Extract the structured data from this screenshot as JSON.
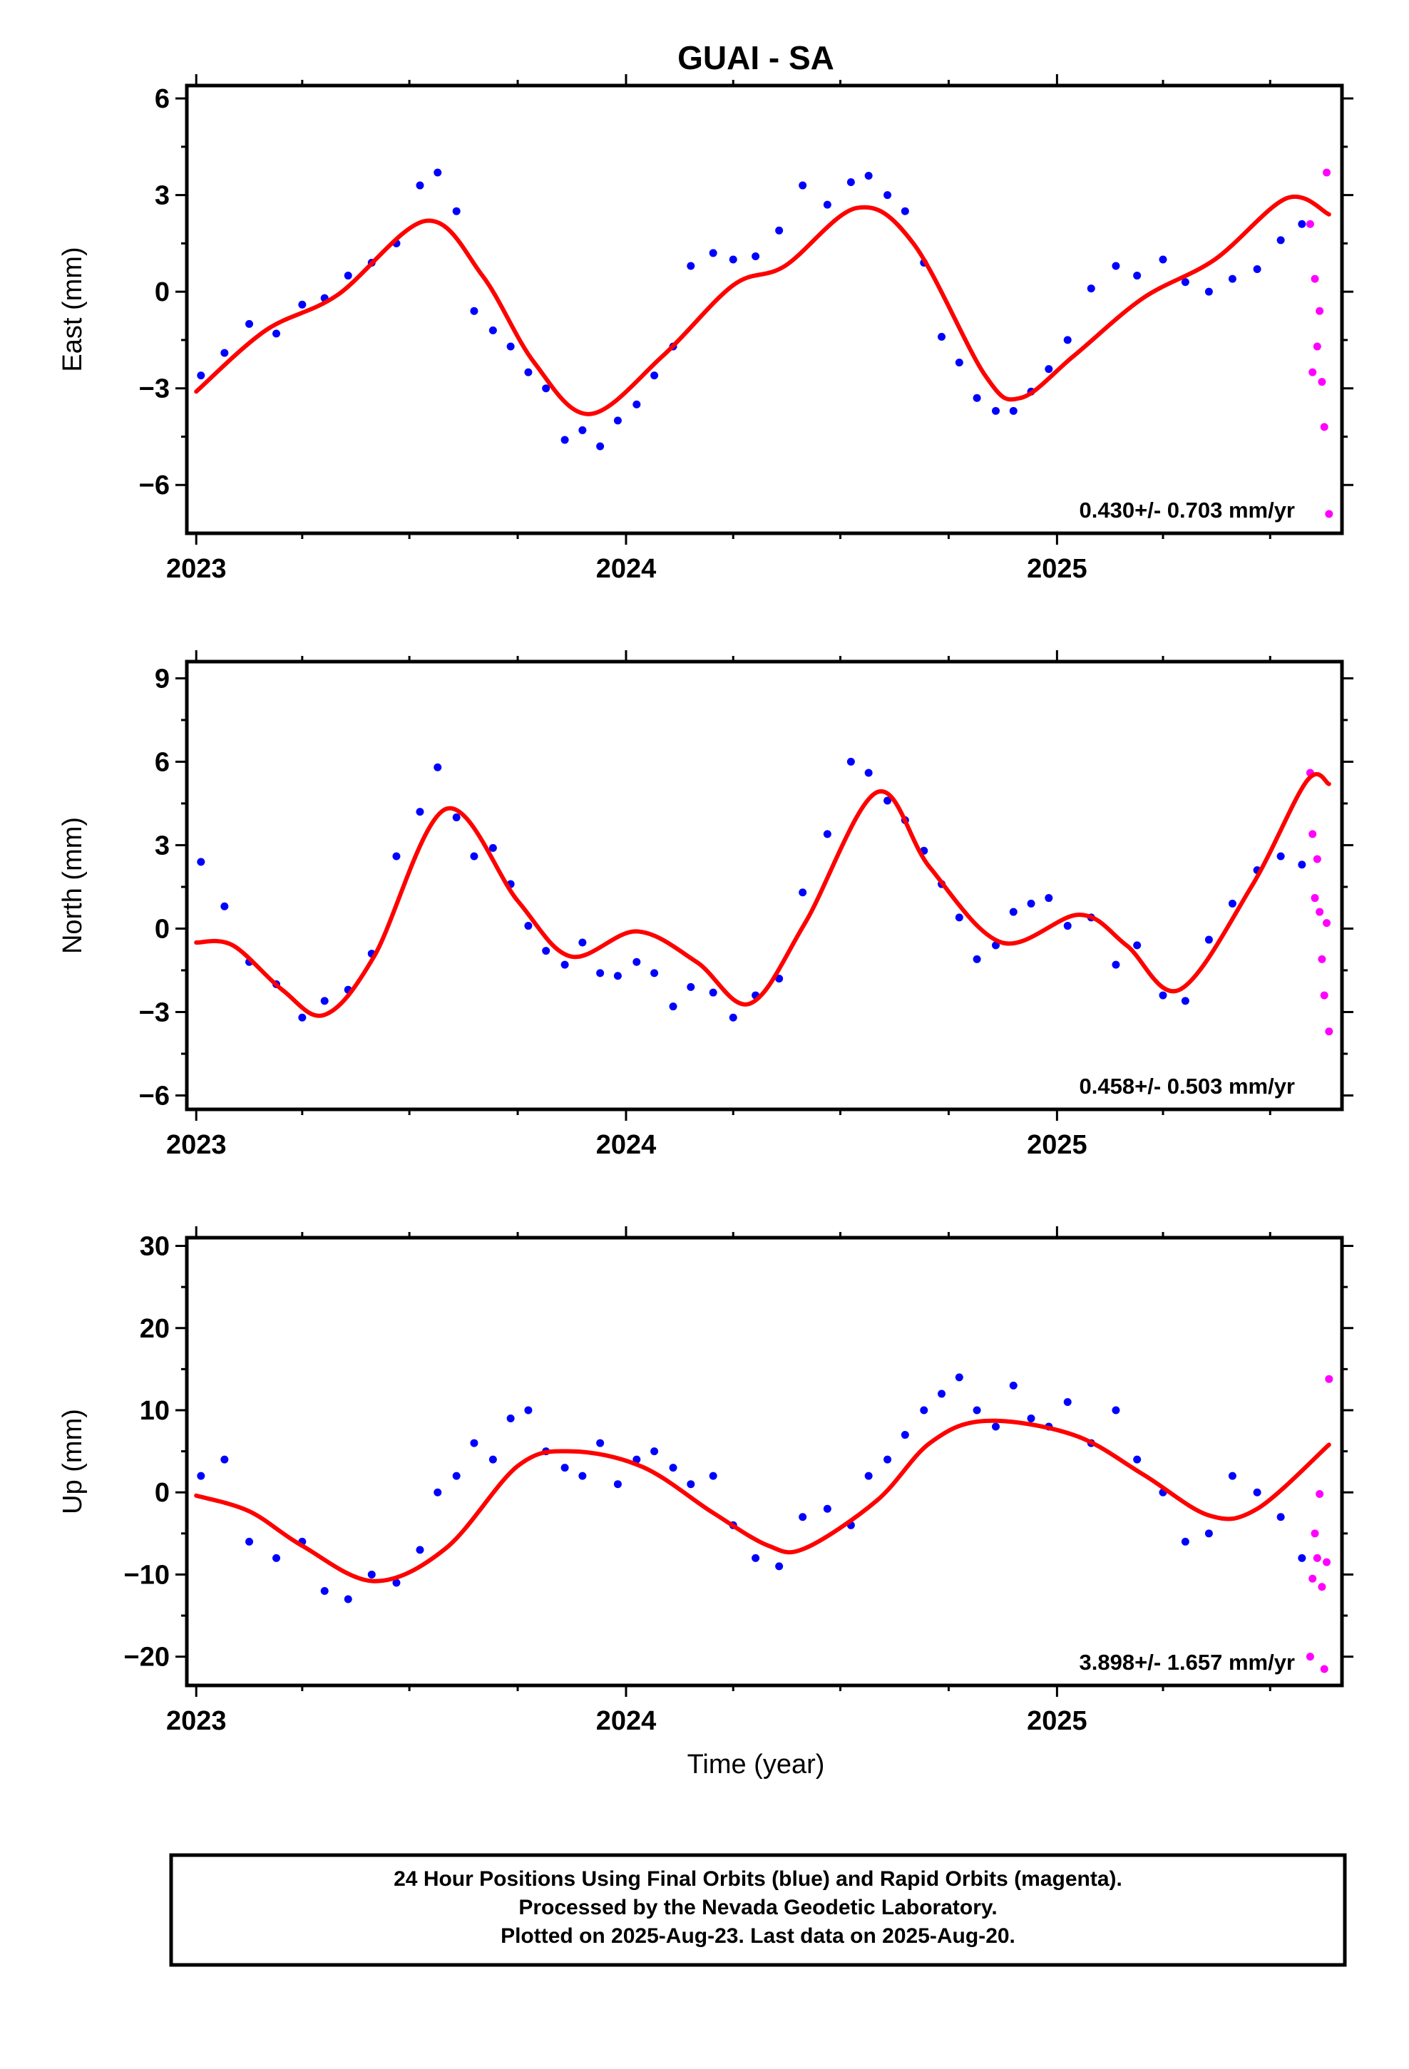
{
  "figure": {
    "title": "GUAI - SA",
    "xlabel": "Time (year)",
    "footer": [
      "24 Hour Positions Using Final Orbits (blue) and Rapid Orbits (magenta).",
      "Processed by the Nevada Geodetic Laboratory.",
      "Plotted on 2025-Aug-23. Last data on 2025-Aug-20."
    ]
  },
  "colors": {
    "final_orbits": "#0000ff",
    "rapid_orbits": "#ff00ff",
    "fit": "#ff0000",
    "frame": "#000000"
  },
  "chart_data": [
    {
      "type": "scatter",
      "ylabel": "East (mm)",
      "xlim": [
        "2022-12-24",
        "2025-08-31"
      ],
      "ylim": [
        -7.5,
        6.4
      ],
      "xticks": [
        "2023",
        "2024",
        "2025"
      ],
      "yticks": [
        -6,
        -3,
        0,
        3,
        6
      ],
      "rate_text": "0.430+/- 0.703 mm/yr",
      "fit_curve": {
        "x": [
          "2023-01-01",
          "2023-03-01",
          "2023-05-01",
          "2023-07-15",
          "2023-09-01",
          "2023-10-15",
          "2023-12-01",
          "2024-02-01",
          "2024-04-01",
          "2024-05-15",
          "2024-07-15",
          "2024-09-01",
          "2024-11-01",
          "2024-12-01",
          "2025-01-15",
          "2025-03-15",
          "2025-05-15",
          "2025-07-15",
          "2025-08-20"
        ],
        "y": [
          -3.1,
          -1.2,
          -0.1,
          2.2,
          0.5,
          -2.2,
          -3.8,
          -2.0,
          0.2,
          0.8,
          2.6,
          1.5,
          -2.6,
          -3.3,
          -2.0,
          -0.2,
          1.0,
          2.9,
          2.4
        ]
      },
      "series": [
        {
          "name": "Final Orbits",
          "x": [
            "2023-01-05",
            "2023-01-25",
            "2023-02-15",
            "2023-03-10",
            "2023-04-01",
            "2023-04-20",
            "2023-05-10",
            "2023-05-30",
            "2023-06-20",
            "2023-07-10",
            "2023-07-25",
            "2023-08-10",
            "2023-08-25",
            "2023-09-10",
            "2023-09-25",
            "2023-10-10",
            "2023-10-25",
            "2023-11-10",
            "2023-11-25",
            "2023-12-10",
            "2023-12-25",
            "2024-01-10",
            "2024-01-25",
            "2024-02-10",
            "2024-02-25",
            "2024-03-15",
            "2024-04-01",
            "2024-04-20",
            "2024-05-10",
            "2024-05-30",
            "2024-06-20",
            "2024-07-10",
            "2024-07-25",
            "2024-08-10",
            "2024-08-25",
            "2024-09-10",
            "2024-09-25",
            "2024-10-10",
            "2024-10-25",
            "2024-11-10",
            "2024-11-25",
            "2024-12-10",
            "2024-12-25",
            "2025-01-10",
            "2025-01-30",
            "2025-02-20",
            "2025-03-10",
            "2025-04-01",
            "2025-04-20",
            "2025-05-10",
            "2025-05-30",
            "2025-06-20",
            "2025-07-10",
            "2025-07-28"
          ],
          "y": [
            -2.6,
            -1.9,
            -1.0,
            -1.3,
            -0.4,
            -0.2,
            0.5,
            0.9,
            1.5,
            3.3,
            3.7,
            2.5,
            -0.6,
            -1.2,
            -1.7,
            -2.5,
            -3.0,
            -4.6,
            -4.3,
            -4.8,
            -4.0,
            -3.5,
            -2.6,
            -1.7,
            0.8,
            1.2,
            1.0,
            1.1,
            1.9,
            3.3,
            2.7,
            3.4,
            3.6,
            3.0,
            2.5,
            0.9,
            -1.4,
            -2.2,
            -3.3,
            -3.7,
            -3.7,
            -3.1,
            -2.4,
            -1.5,
            0.1,
            0.8,
            0.5,
            1.0,
            0.3,
            0.0,
            0.4,
            0.7,
            1.6,
            2.1
          ]
        },
        {
          "name": "Rapid Orbits",
          "x": [
            "2025-08-04",
            "2025-08-06",
            "2025-08-08",
            "2025-08-10",
            "2025-08-12",
            "2025-08-14",
            "2025-08-16",
            "2025-08-18",
            "2025-08-20"
          ],
          "y": [
            2.1,
            -2.5,
            0.4,
            -1.7,
            -0.6,
            -2.8,
            -4.2,
            3.7,
            -6.9
          ]
        }
      ]
    },
    {
      "type": "scatter",
      "ylabel": "North (mm)",
      "xlim": [
        "2022-12-24",
        "2025-08-31"
      ],
      "ylim": [
        -6.5,
        9.6
      ],
      "xticks": [
        "2023",
        "2024",
        "2025"
      ],
      "yticks": [
        -6,
        -3,
        0,
        3,
        6,
        9
      ],
      "rate_text": "0.458+/- 0.503 mm/yr",
      "fit_curve": {
        "x": [
          "2023-01-01",
          "2023-02-01",
          "2023-03-15",
          "2023-04-20",
          "2023-06-01",
          "2023-08-01",
          "2023-10-01",
          "2023-11-15",
          "2024-01-10",
          "2024-03-01",
          "2024-04-15",
          "2024-06-01",
          "2024-08-01",
          "2024-09-15",
          "2024-11-15",
          "2025-01-20",
          "2025-03-01",
          "2025-04-15",
          "2025-06-15",
          "2025-08-01",
          "2025-08-20"
        ],
        "y": [
          -0.5,
          -0.6,
          -2.2,
          -3.1,
          -1.0,
          4.3,
          1.0,
          -1.0,
          -0.1,
          -1.2,
          -2.7,
          0.2,
          4.9,
          2.2,
          -0.5,
          0.5,
          -0.6,
          -2.2,
          1.5,
          5.3,
          5.2
        ]
      },
      "series": [
        {
          "name": "Final Orbits",
          "x": [
            "2023-01-05",
            "2023-01-25",
            "2023-02-15",
            "2023-03-10",
            "2023-04-01",
            "2023-04-20",
            "2023-05-10",
            "2023-05-30",
            "2023-06-20",
            "2023-07-10",
            "2023-07-25",
            "2023-08-10",
            "2023-08-25",
            "2023-09-10",
            "2023-09-25",
            "2023-10-10",
            "2023-10-25",
            "2023-11-10",
            "2023-11-25",
            "2023-12-10",
            "2023-12-25",
            "2024-01-10",
            "2024-01-25",
            "2024-02-10",
            "2024-02-25",
            "2024-03-15",
            "2024-04-01",
            "2024-04-20",
            "2024-05-10",
            "2024-05-30",
            "2024-06-20",
            "2024-07-10",
            "2024-07-25",
            "2024-08-10",
            "2024-08-25",
            "2024-09-10",
            "2024-09-25",
            "2024-10-10",
            "2024-10-25",
            "2024-11-10",
            "2024-11-25",
            "2024-12-10",
            "2024-12-25",
            "2025-01-10",
            "2025-01-30",
            "2025-02-20",
            "2025-03-10",
            "2025-04-01",
            "2025-04-20",
            "2025-05-10",
            "2025-05-30",
            "2025-06-20",
            "2025-07-10",
            "2025-07-28"
          ],
          "y": [
            2.4,
            0.8,
            -1.2,
            -2.0,
            -3.2,
            -2.6,
            -2.2,
            -0.9,
            2.6,
            4.2,
            5.8,
            4.0,
            2.6,
            2.9,
            1.6,
            0.1,
            -0.8,
            -1.3,
            -0.5,
            -1.6,
            -1.7,
            -1.2,
            -1.6,
            -2.8,
            -2.1,
            -2.3,
            -3.2,
            -2.4,
            -1.8,
            1.3,
            3.4,
            6.0,
            5.6,
            4.6,
            3.9,
            2.8,
            1.6,
            0.4,
            -1.1,
            -0.6,
            0.6,
            0.9,
            1.1,
            0.1,
            0.4,
            -1.3,
            -0.6,
            -2.4,
            -2.6,
            -0.4,
            0.9,
            2.1,
            2.6,
            2.3
          ]
        },
        {
          "name": "Rapid Orbits",
          "x": [
            "2025-08-04",
            "2025-08-06",
            "2025-08-08",
            "2025-08-10",
            "2025-08-12",
            "2025-08-14",
            "2025-08-16",
            "2025-08-18",
            "2025-08-20"
          ],
          "y": [
            5.6,
            3.4,
            1.1,
            2.5,
            0.6,
            -1.1,
            -2.4,
            0.2,
            -3.7
          ]
        }
      ]
    },
    {
      "type": "scatter",
      "ylabel": "Up (mm)",
      "xlim": [
        "2022-12-24",
        "2025-08-31"
      ],
      "ylim": [
        -23.5,
        31
      ],
      "xticks": [
        "2023",
        "2024",
        "2025"
      ],
      "yticks": [
        -20,
        -10,
        0,
        10,
        20,
        30
      ],
      "xlabel": "Time (year)",
      "rate_text": "3.898+/- 1.657 mm/yr",
      "fit_curve": {
        "x": [
          "2023-01-01",
          "2023-02-15",
          "2023-04-01",
          "2023-06-01",
          "2023-08-01",
          "2023-10-01",
          "2023-11-15",
          "2024-01-15",
          "2024-03-15",
          "2024-05-01",
          "2024-06-01",
          "2024-08-01",
          "2024-09-15",
          "2024-11-01",
          "2025-01-15",
          "2025-03-15",
          "2025-05-10",
          "2025-06-20",
          "2025-08-20"
        ],
        "y": [
          -0.4,
          -2.3,
          -6.5,
          -10.8,
          -6.8,
          3.2,
          5.0,
          3.1,
          -2.5,
          -6.5,
          -6.8,
          -1.0,
          6.0,
          8.7,
          7.0,
          2.2,
          -2.8,
          -2.0,
          5.8
        ]
      },
      "series": [
        {
          "name": "Final Orbits",
          "x": [
            "2023-01-05",
            "2023-01-25",
            "2023-02-15",
            "2023-03-10",
            "2023-04-01",
            "2023-04-20",
            "2023-05-10",
            "2023-05-30",
            "2023-06-20",
            "2023-07-10",
            "2023-07-25",
            "2023-08-10",
            "2023-08-25",
            "2023-09-10",
            "2023-09-25",
            "2023-10-10",
            "2023-10-25",
            "2023-11-10",
            "2023-11-25",
            "2023-12-10",
            "2023-12-25",
            "2024-01-10",
            "2024-01-25",
            "2024-02-10",
            "2024-02-25",
            "2024-03-15",
            "2024-04-01",
            "2024-04-20",
            "2024-05-10",
            "2024-05-30",
            "2024-06-20",
            "2024-07-10",
            "2024-07-25",
            "2024-08-10",
            "2024-08-25",
            "2024-09-10",
            "2024-09-25",
            "2024-10-10",
            "2024-10-25",
            "2024-11-10",
            "2024-11-25",
            "2024-12-10",
            "2024-12-25",
            "2025-01-10",
            "2025-01-30",
            "2025-02-20",
            "2025-03-10",
            "2025-04-01",
            "2025-04-20",
            "2025-05-10",
            "2025-05-30",
            "2025-06-20",
            "2025-07-10",
            "2025-07-28"
          ],
          "y": [
            2.0,
            4.0,
            -6.0,
            -8.0,
            -6.0,
            -12.0,
            -13.0,
            -10.0,
            -11.0,
            -7.0,
            0.0,
            2.0,
            6.0,
            4.0,
            9.0,
            10.0,
            5.0,
            3.0,
            2.0,
            6.0,
            1.0,
            4.0,
            5.0,
            3.0,
            1.0,
            2.0,
            -4.0,
            -8.0,
            -9.0,
            -3.0,
            -2.0,
            -4.0,
            2.0,
            4.0,
            7.0,
            10.0,
            12.0,
            14.0,
            10.0,
            8.0,
            13.0,
            9.0,
            8.0,
            11.0,
            6.0,
            10.0,
            4.0,
            0.0,
            -6.0,
            -5.0,
            2.0,
            0.0,
            -3.0,
            -8.0
          ]
        },
        {
          "name": "Rapid Orbits",
          "x": [
            "2025-08-04",
            "2025-08-06",
            "2025-08-08",
            "2025-08-10",
            "2025-08-12",
            "2025-08-14",
            "2025-08-16",
            "2025-08-18",
            "2025-08-20"
          ],
          "y": [
            -20.0,
            -10.5,
            -5.0,
            -8.0,
            -0.2,
            -11.5,
            -21.5,
            -8.5,
            13.8
          ]
        }
      ]
    }
  ]
}
